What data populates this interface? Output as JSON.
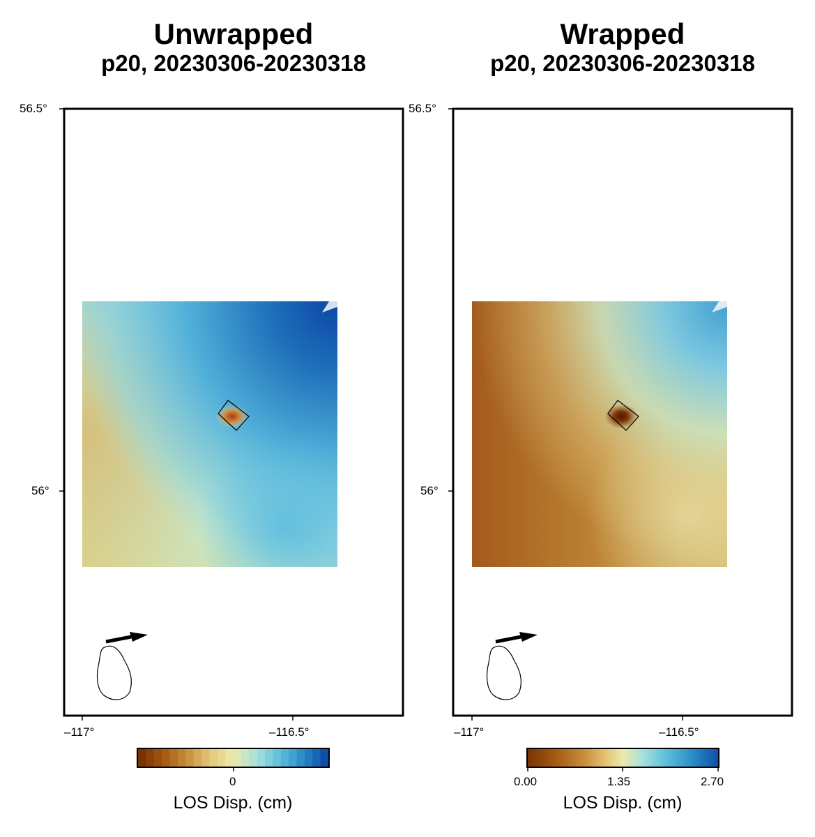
{
  "panels": [
    {
      "title": "Unwrapped",
      "subtitle": "p20, 20230306-20230318",
      "lat_ticks": [
        "56.5°",
        "56°"
      ],
      "lon_ticks": [
        "–117°",
        "–116.5°"
      ],
      "colorbar": {
        "ticks": [
          "0"
        ],
        "label": "LOS Disp. (cm)",
        "discrete": true
      }
    },
    {
      "title": "Wrapped",
      "subtitle": "p20, 20230306-20230318",
      "lat_ticks": [
        "56.5°",
        "56°"
      ],
      "lon_ticks": [
        "–117°",
        "–116.5°"
      ],
      "colorbar": {
        "ticks": [
          "0.00",
          "1.35",
          "2.70"
        ],
        "label": "LOS Disp. (cm)",
        "discrete": false
      }
    }
  ],
  "colormap": [
    "#7a3300",
    "#a65a14",
    "#c98f3e",
    "#e5c878",
    "#edeaaa",
    "#a8e2dc",
    "#5fc0dc",
    "#2b8fc8",
    "#0c4ea8"
  ],
  "icons": [
    "satellite-heading-arrow-icon",
    "look-direction-outline-icon"
  ]
}
